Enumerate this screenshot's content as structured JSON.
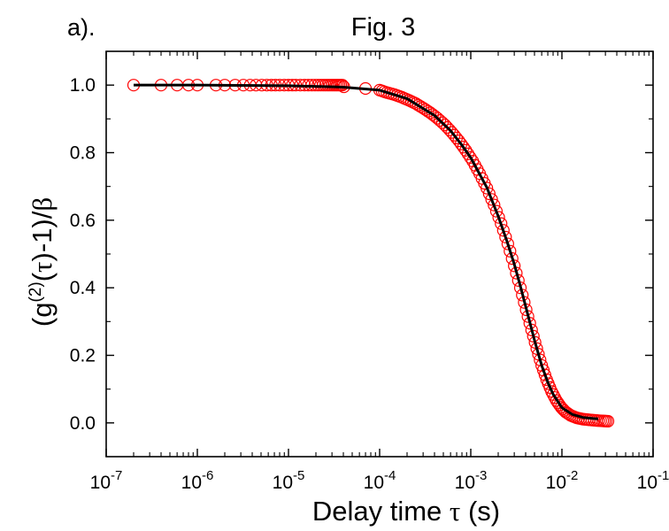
{
  "panel_label": "a).",
  "colors": {
    "marker": "#ff0000",
    "fit_line": "#000000",
    "axes": "#000000",
    "background": "#ffffff"
  },
  "chart_data": {
    "type": "scatter",
    "title": "Fig. 3",
    "xlabel": "Delay time τ (s)",
    "ylabel": "(g(2)(τ)-1)/β",
    "x_scale": "log",
    "xlim": [
      1e-07,
      0.1
    ],
    "ylim": [
      -0.1,
      1.1
    ],
    "x_ticks": [
      {
        "value": 1e-07,
        "base": "10",
        "exp": "-7"
      },
      {
        "value": 1e-06,
        "base": "10",
        "exp": "-6"
      },
      {
        "value": 1e-05,
        "base": "10",
        "exp": "-5"
      },
      {
        "value": 0.0001,
        "base": "10",
        "exp": "-4"
      },
      {
        "value": 0.001,
        "base": "10",
        "exp": "-3"
      },
      {
        "value": 0.01,
        "base": "10",
        "exp": "-2"
      },
      {
        "value": 0.1,
        "base": "10",
        "exp": "-1"
      }
    ],
    "y_ticks": [
      {
        "value": 0.0,
        "label": "0.0"
      },
      {
        "value": 0.2,
        "label": "0.2"
      },
      {
        "value": 0.4,
        "label": "0.4"
      },
      {
        "value": 0.6,
        "label": "0.6"
      },
      {
        "value": 0.8,
        "label": "0.8"
      },
      {
        "value": 1.0,
        "label": "1.0"
      }
    ],
    "grid": false,
    "legend": "none",
    "series": [
      {
        "kind": "markers",
        "marker": "open-circle",
        "color": "#ff0000",
        "points": [
          [
            2e-07,
            1.0
          ],
          [
            4e-07,
            1.0
          ],
          [
            6e-07,
            1.0
          ],
          [
            8e-07,
            1.0
          ],
          [
            1e-06,
            1.0
          ],
          [
            1.6e-06,
            1.0
          ],
          [
            2e-06,
            1.0
          ],
          [
            2.6e-06,
            1.0
          ],
          [
            3.2e-06,
            1.0
          ],
          [
            3.8e-06,
            1.0
          ],
          [
            4.4e-06,
            1.0
          ],
          [
            5.1e-06,
            1.0
          ],
          [
            5.8e-06,
            1.0
          ],
          [
            6.5e-06,
            1.0
          ],
          [
            7.2e-06,
            1.0
          ],
          [
            8e-06,
            1.0
          ],
          [
            9e-06,
            1.0
          ],
          [
            1e-05,
            1.0
          ],
          [
            1.1e-05,
            1.0
          ],
          [
            1.2e-05,
            1.0
          ],
          [
            1.35e-05,
            1.0
          ],
          [
            1.5e-05,
            1.0
          ],
          [
            1.65e-05,
            1.0
          ],
          [
            1.8e-05,
            1.0
          ],
          [
            1.95e-05,
            1.0
          ],
          [
            2.1e-05,
            1.0
          ],
          [
            2.25e-05,
            1.0
          ],
          [
            2.4e-05,
            1.0
          ],
          [
            2.55e-05,
            1.0
          ],
          [
            2.7e-05,
            1.0
          ],
          [
            2.85e-05,
            1.0
          ],
          [
            3e-05,
            1.0
          ],
          [
            3.15e-05,
            1.0
          ],
          [
            3.3e-05,
            1.0
          ],
          [
            3.45e-05,
            1.0
          ],
          [
            3.6e-05,
            1.0
          ],
          [
            3.75e-05,
            1.0
          ],
          [
            3.9e-05,
            1.0
          ],
          [
            4.05e-05,
            0.995
          ],
          [
            7e-05,
            0.99
          ],
          [
            0.0001,
            0.985
          ],
          [
            0.00012,
            0.978
          ],
          [
            0.000145,
            0.972
          ],
          [
            0.000175,
            0.964
          ],
          [
            0.00021,
            0.955
          ],
          [
            0.00025,
            0.945
          ],
          [
            0.0003,
            0.932
          ],
          [
            0.00036,
            0.918
          ],
          [
            0.00043,
            0.902
          ],
          [
            0.00052,
            0.882
          ],
          [
            0.00062,
            0.86
          ],
          [
            0.00074,
            0.835
          ],
          [
            0.00088,
            0.807
          ],
          [
            0.00105,
            0.775
          ],
          [
            0.00125,
            0.738
          ],
          [
            0.0015,
            0.695
          ],
          [
            0.0018,
            0.645
          ],
          [
            0.00215,
            0.59
          ],
          [
            0.00255,
            0.53
          ],
          [
            0.003,
            0.465
          ],
          [
            0.0035,
            0.4
          ],
          [
            0.00405,
            0.335
          ],
          [
            0.00465,
            0.275
          ],
          [
            0.0053,
            0.22
          ],
          [
            0.006,
            0.17
          ],
          [
            0.0068,
            0.128
          ],
          [
            0.0077,
            0.093
          ],
          [
            0.0087,
            0.066
          ],
          [
            0.0098,
            0.046
          ],
          [
            0.011,
            0.032
          ],
          [
            0.0125,
            0.022
          ],
          [
            0.0145,
            0.015
          ],
          [
            0.017,
            0.011
          ],
          [
            0.02,
            0.009
          ],
          [
            0.024,
            0.007
          ],
          [
            0.028,
            0.006
          ],
          [
            0.032,
            0.005
          ]
        ]
      },
      {
        "kind": "line",
        "color": "#000000",
        "points": [
          [
            2e-07,
            1.0
          ],
          [
            1e-06,
            1.0
          ],
          [
            1e-05,
            0.998
          ],
          [
            4e-05,
            0.994
          ],
          [
            0.0001,
            0.985
          ],
          [
            0.0002,
            0.96
          ],
          [
            0.0004,
            0.91
          ],
          [
            0.0006,
            0.865
          ],
          [
            0.0008,
            0.822
          ],
          [
            0.001,
            0.785
          ],
          [
            0.0015,
            0.697
          ],
          [
            0.002,
            0.612
          ],
          [
            0.0025,
            0.537
          ],
          [
            0.003,
            0.47
          ],
          [
            0.0035,
            0.405
          ],
          [
            0.004,
            0.345
          ],
          [
            0.005,
            0.245
          ],
          [
            0.006,
            0.17
          ],
          [
            0.007,
            0.12
          ],
          [
            0.008,
            0.085
          ],
          [
            0.01,
            0.045
          ],
          [
            0.013,
            0.025
          ],
          [
            0.017,
            0.016
          ],
          [
            0.022,
            0.013
          ],
          [
            0.025,
            0.012
          ]
        ]
      }
    ]
  }
}
